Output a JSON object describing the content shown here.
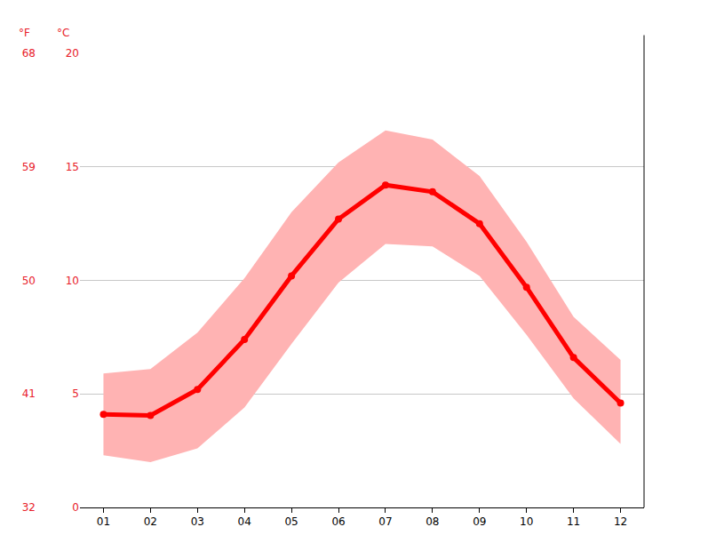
{
  "chart_data": {
    "type": "line",
    "categories": [
      "01",
      "02",
      "03",
      "04",
      "05",
      "06",
      "07",
      "08",
      "09",
      "10",
      "11",
      "12"
    ],
    "series": [
      {
        "type": "area",
        "lower": [
          2.3,
          2.0,
          2.6,
          4.4,
          7.2,
          9.9,
          11.6,
          11.5,
          10.2,
          7.6,
          4.8,
          2.8
        ],
        "upper": [
          5.9,
          6.1,
          7.7,
          10.1,
          13.0,
          15.2,
          16.6,
          16.2,
          14.6,
          11.7,
          8.4,
          6.5
        ],
        "color": "#ffb3b3"
      },
      {
        "type": "line",
        "values": [
          4.1,
          4.05,
          5.2,
          7.4,
          10.2,
          12.7,
          14.2,
          13.9,
          12.5,
          9.7,
          6.6,
          4.6
        ],
        "color": "#ff0000",
        "marker": "circle"
      }
    ],
    "y_label": "°C",
    "y2_label": "°F",
    "ylim": [
      0,
      20
    ],
    "yticks": [
      0,
      5,
      10,
      15,
      20
    ],
    "y2lim": [
      32,
      68
    ],
    "y2ticks": [
      32,
      41,
      50,
      59,
      68
    ],
    "grid": true
  }
}
